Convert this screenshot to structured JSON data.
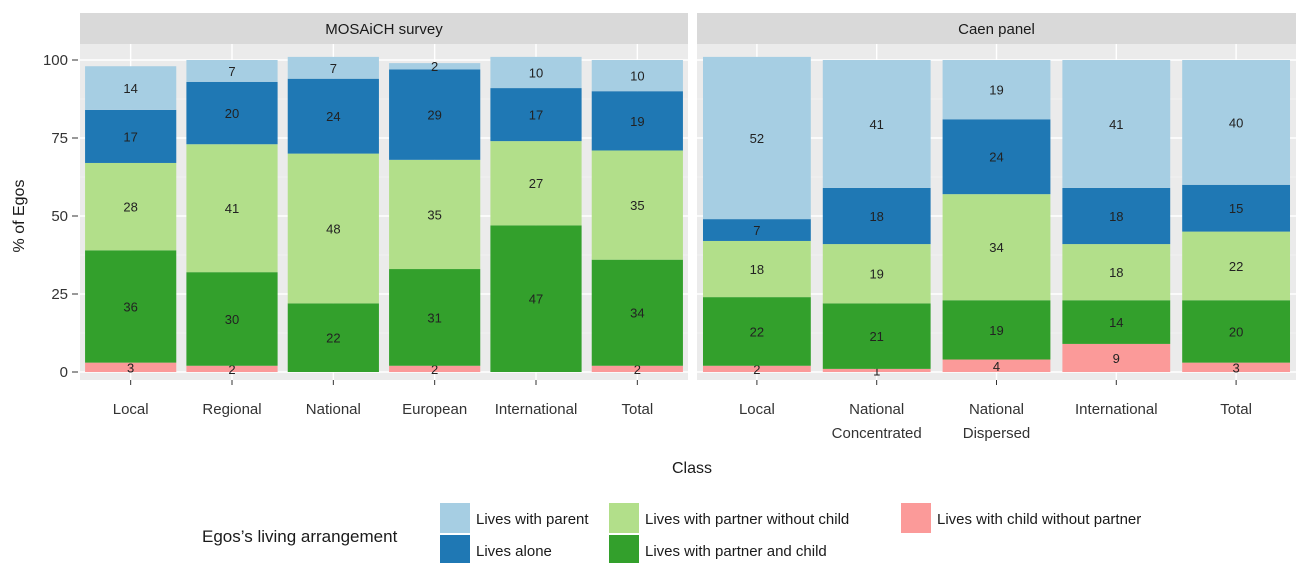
{
  "chart_data": {
    "type": "bar",
    "stacked": true,
    "ylabel": "% of Egos",
    "xlabel": "Class",
    "ylim": [
      0,
      100
    ],
    "yticks": [
      0,
      25,
      50,
      75,
      100
    ],
    "legend": {
      "title": "Egos’s living arrangement",
      "placement": "bottom",
      "entries": [
        {
          "name": "Lives with parent",
          "color": "#A6CEE3"
        },
        {
          "name": "Lives alone",
          "color": "#1F78B4"
        },
        {
          "name": "Lives with partner without child",
          "color": "#B2DF8A"
        },
        {
          "name": "Lives with partner and child",
          "color": "#33A02C"
        },
        {
          "name": "Lives with child without partner",
          "color": "#FB9A99"
        }
      ]
    },
    "stack_order_bottom_to_top": [
      "Lives with child without partner",
      "Lives with partner and child",
      "Lives with partner without child",
      "Lives alone",
      "Lives with parent"
    ],
    "panels": [
      {
        "title": "MOSAiCH survey",
        "categories": [
          "Local",
          "Regional",
          "National",
          "European",
          "International",
          "Total"
        ],
        "category_lines": [
          [
            "Local"
          ],
          [
            "Regional"
          ],
          [
            "National"
          ],
          [
            "European"
          ],
          [
            "International"
          ],
          [
            "Total"
          ]
        ],
        "series": [
          {
            "name": "Lives with child without partner",
            "values": [
              3,
              2,
              0,
              2,
              0,
              2
            ],
            "labels": [
              "3",
              "2",
              "",
              "2",
              "",
              "2"
            ]
          },
          {
            "name": "Lives with partner and child",
            "values": [
              36,
              30,
              22,
              31,
              47,
              34
            ],
            "labels": [
              "36",
              "30",
              "22",
              "31",
              "47",
              "34"
            ]
          },
          {
            "name": "Lives with partner without child",
            "values": [
              28,
              41,
              48,
              35,
              27,
              35
            ],
            "labels": [
              "28",
              "41",
              "48",
              "35",
              "27",
              "35"
            ]
          },
          {
            "name": "Lives alone",
            "values": [
              17,
              20,
              24,
              29,
              17,
              19
            ],
            "labels": [
              "17",
              "20",
              "24",
              "29",
              "17",
              "19"
            ]
          },
          {
            "name": "Lives with parent",
            "values": [
              14,
              7,
              7,
              2,
              10,
              10
            ],
            "labels": [
              "14",
              "7",
              "7",
              "2",
              "10",
              "10"
            ]
          }
        ]
      },
      {
        "title": "Caen panel",
        "categories": [
          "Local",
          "National Concentrated",
          "National Dispersed",
          "International",
          "Total"
        ],
        "category_lines": [
          [
            "Local"
          ],
          [
            "National",
            "Concentrated"
          ],
          [
            "National",
            "Dispersed"
          ],
          [
            "International"
          ],
          [
            "Total"
          ]
        ],
        "series": [
          {
            "name": "Lives with child without partner",
            "values": [
              2,
              1,
              4,
              9,
              3
            ],
            "labels": [
              "2",
              "1",
              "4",
              "9",
              "3"
            ]
          },
          {
            "name": "Lives with partner and child",
            "values": [
              22,
              21,
              19,
              14,
              20
            ],
            "labels": [
              "22",
              "21",
              "19",
              "14",
              "20"
            ]
          },
          {
            "name": "Lives with partner without child",
            "values": [
              18,
              19,
              34,
              18,
              22
            ],
            "labels": [
              "18",
              "19",
              "34",
              "18",
              "22"
            ]
          },
          {
            "name": "Lives alone",
            "values": [
              7,
              18,
              24,
              18,
              15
            ],
            "labels": [
              "7",
              "18",
              "24",
              "18",
              "15"
            ]
          },
          {
            "name": "Lives with parent",
            "values": [
              52,
              41,
              19,
              41,
              40
            ],
            "labels": [
              "52",
              "41",
              "19",
              "41",
              "40"
            ]
          }
        ]
      }
    ]
  }
}
